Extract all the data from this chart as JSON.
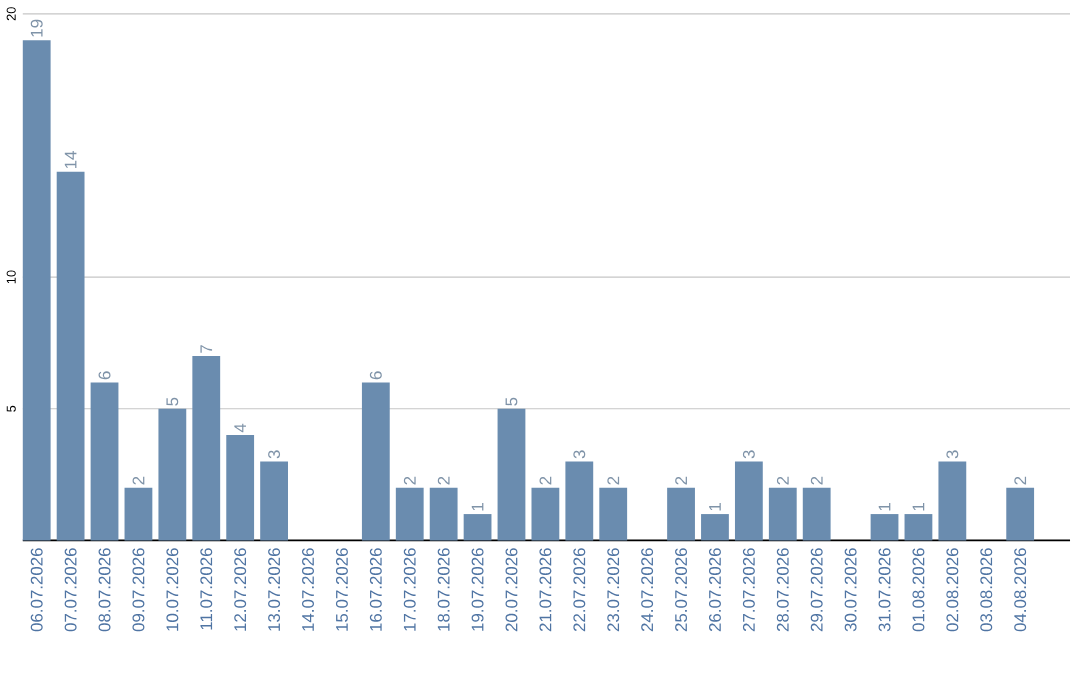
{
  "chart_data": {
    "type": "bar",
    "categories": [
      "06.07.2026",
      "07.07.2026",
      "08.07.2026",
      "09.07.2026",
      "10.07.2026",
      "11.07.2026",
      "12.07.2026",
      "13.07.2026",
      "14.07.2026",
      "15.07.2026",
      "16.07.2026",
      "17.07.2026",
      "18.07.2026",
      "19.07.2026",
      "20.07.2026",
      "21.07.2026",
      "22.07.2026",
      "23.07.2026",
      "24.07.2026",
      "25.07.2026",
      "26.07.2026",
      "27.07.2026",
      "28.07.2026",
      "29.07.2026",
      "30.07.2026",
      "31.07.2026",
      "01.08.2026",
      "02.08.2026",
      "03.08.2026",
      "04.08.2026"
    ],
    "values": [
      19,
      14,
      6,
      2,
      5,
      7,
      4,
      3,
      null,
      null,
      6,
      2,
      2,
      1,
      5,
      2,
      3,
      2,
      null,
      2,
      1,
      3,
      2,
      2,
      null,
      1,
      1,
      3,
      null,
      2
    ],
    "color": "#6a8caf",
    "ylim": [
      0,
      20
    ],
    "yticks": [
      5,
      10,
      20
    ],
    "grid": "y",
    "data_labels": true
  }
}
